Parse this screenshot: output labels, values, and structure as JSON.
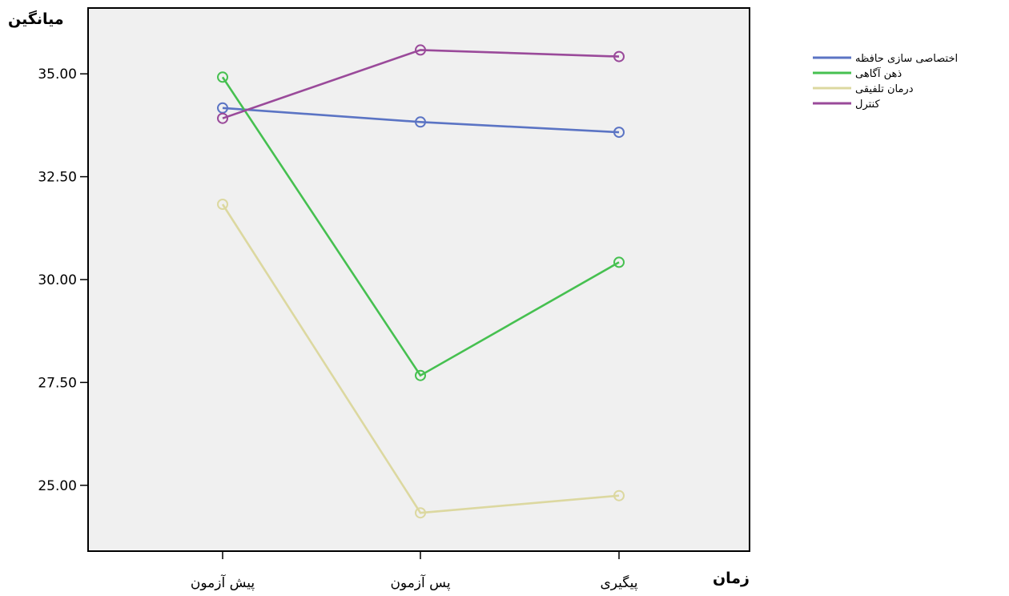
{
  "chart_data": {
    "type": "line",
    "title": "",
    "xlabel": "زمان",
    "ylabel": "میانگین",
    "categories": [
      "پیش آزمون",
      "پس آزمون",
      "پیگیری"
    ],
    "ylim": [
      23.4,
      36.6
    ],
    "yticks": [
      25.0,
      27.5,
      30.0,
      32.5,
      35.0
    ],
    "ytick_labels": [
      "25.00",
      "27.50",
      "30.00",
      "32.50",
      "35.00"
    ],
    "grid": false,
    "legend_position": "right",
    "marker": "open-circle",
    "series": [
      {
        "name": "اختصاصی سازی حافظه",
        "color": "#5b74c4",
        "values": [
          34.17,
          33.83,
          33.58
        ]
      },
      {
        "name": "ذهن آگاهی",
        "color": "#46c050",
        "values": [
          34.92,
          27.67,
          30.42
        ]
      },
      {
        "name": "درمان تلفیقی",
        "color": "#dcd8a0",
        "values": [
          31.83,
          24.33,
          24.75
        ]
      },
      {
        "name": "کنترل",
        "color": "#9a4a9a",
        "values": [
          33.92,
          35.58,
          35.42
        ]
      }
    ]
  }
}
